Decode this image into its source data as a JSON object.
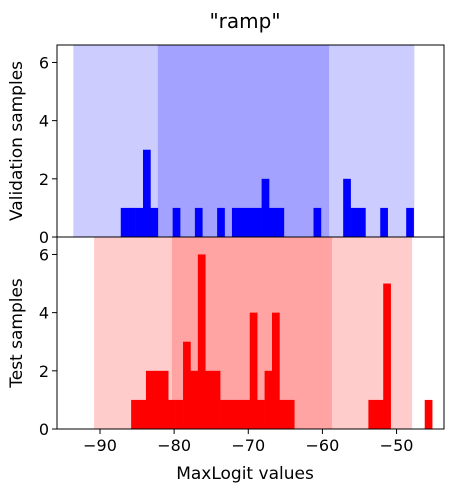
{
  "chart_data": {
    "type": "bar",
    "title": "\"ramp\"",
    "xlabel": "MaxLogit values",
    "xlim": [
      -95.8,
      -43.6
    ],
    "xticks": [
      -90,
      -80,
      -70,
      -60,
      -50
    ],
    "xtick_labels": [
      "−90",
      "−80",
      "−70",
      "−60",
      "−50"
    ],
    "bin_width": 1.0,
    "subplots": [
      {
        "name": "validation",
        "ylabel": "Validation samples",
        "ylim": [
          0,
          6.6
        ],
        "yticks": [
          0,
          2,
          4,
          6
        ],
        "ytick_labels": [
          "0",
          "2",
          "4",
          "6"
        ],
        "bar_color": "#0000ff",
        "band_color": "#0000ff",
        "outer_band": [
          -93.6,
          -47.6
        ],
        "inner_band": [
          -82.2,
          -59.1
        ],
        "median_line": -70.5,
        "bins": [
          {
            "x0": -87.2,
            "count": 1
          },
          {
            "x0": -86.2,
            "count": 1
          },
          {
            "x0": -85.2,
            "count": 1
          },
          {
            "x0": -84.2,
            "count": 3
          },
          {
            "x0": -83.2,
            "count": 1
          },
          {
            "x0": -80.2,
            "count": 1
          },
          {
            "x0": -77.2,
            "count": 1
          },
          {
            "x0": -74.2,
            "count": 1
          },
          {
            "x0": -72.2,
            "count": 1
          },
          {
            "x0": -71.2,
            "count": 1
          },
          {
            "x0": -70.2,
            "count": 1
          },
          {
            "x0": -69.2,
            "count": 1
          },
          {
            "x0": -68.2,
            "count": 2
          },
          {
            "x0": -67.2,
            "count": 1
          },
          {
            "x0": -66.2,
            "count": 1
          },
          {
            "x0": -61.2,
            "count": 1
          },
          {
            "x0": -57.2,
            "count": 2
          },
          {
            "x0": -56.2,
            "count": 1
          },
          {
            "x0": -55.2,
            "count": 1
          },
          {
            "x0": -52.2,
            "count": 1
          },
          {
            "x0": -48.7,
            "count": 1
          }
        ]
      },
      {
        "name": "test",
        "ylabel": "Test samples",
        "ylim": [
          0,
          6.6
        ],
        "yticks": [
          0,
          2,
          4,
          6
        ],
        "ytick_labels": [
          "0",
          "2",
          "4",
          "6"
        ],
        "bar_color": "#ff0000",
        "band_color": "#ff0000",
        "outer_band": [
          -90.8,
          -47.9
        ],
        "inner_band": [
          -80.3,
          -58.7
        ],
        "median_line": -69.4,
        "bins": [
          {
            "x0": -85.8,
            "count": 1
          },
          {
            "x0": -84.8,
            "count": 1
          },
          {
            "x0": -83.8,
            "count": 2
          },
          {
            "x0": -82.8,
            "count": 2
          },
          {
            "x0": -81.8,
            "count": 2
          },
          {
            "x0": -80.8,
            "count": 1
          },
          {
            "x0": -79.8,
            "count": 1
          },
          {
            "x0": -78.8,
            "count": 3
          },
          {
            "x0": -77.8,
            "count": 2
          },
          {
            "x0": -76.8,
            "count": 6
          },
          {
            "x0": -75.8,
            "count": 2
          },
          {
            "x0": -74.8,
            "count": 2
          },
          {
            "x0": -73.8,
            "count": 1
          },
          {
            "x0": -72.8,
            "count": 1
          },
          {
            "x0": -71.8,
            "count": 1
          },
          {
            "x0": -70.8,
            "count": 1
          },
          {
            "x0": -69.8,
            "count": 4
          },
          {
            "x0": -68.8,
            "count": 1
          },
          {
            "x0": -67.8,
            "count": 2
          },
          {
            "x0": -66.8,
            "count": 4
          },
          {
            "x0": -65.8,
            "count": 1
          },
          {
            "x0": -64.8,
            "count": 1
          },
          {
            "x0": -53.8,
            "count": 1
          },
          {
            "x0": -52.8,
            "count": 1
          },
          {
            "x0": -51.8,
            "count": 5
          },
          {
            "x0": -46.2,
            "count": 1
          }
        ]
      }
    ]
  }
}
